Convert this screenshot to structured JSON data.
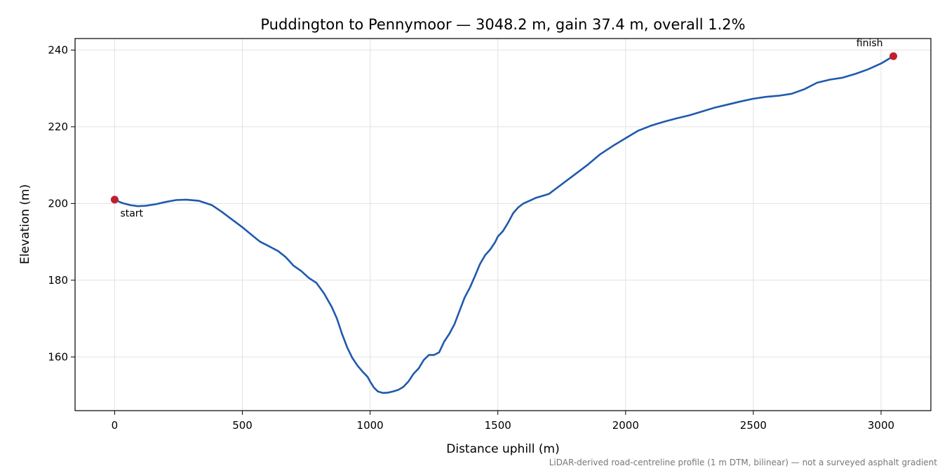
{
  "chart_data": {
    "type": "line",
    "title": "Puddington to Pennymoor — 3048.2 m, gain 37.4 m, overall 1.2%",
    "xlabel": "Distance uphill (m)",
    "ylabel": "Elevation (m)",
    "xlim": [
      -155,
      3195
    ],
    "ylim": [
      146,
      243
    ],
    "xticks": [
      0,
      500,
      1000,
      1500,
      2000,
      2500,
      3000
    ],
    "yticks": [
      160,
      180,
      200,
      220,
      240
    ],
    "grid": true,
    "series": [
      {
        "color": "#1f5aad",
        "x": [
          0,
          30,
          60,
          90,
          120,
          160,
          200,
          240,
          280,
          330,
          380,
          420,
          460,
          500,
          540,
          570,
          600,
          640,
          670,
          700,
          730,
          760,
          790,
          820,
          850,
          870,
          890,
          910,
          930,
          950,
          970,
          990,
          1000,
          1015,
          1030,
          1050,
          1070,
          1090,
          1110,
          1130,
          1150,
          1170,
          1190,
          1210,
          1230,
          1250,
          1270,
          1290,
          1310,
          1330,
          1350,
          1370,
          1390,
          1410,
          1430,
          1450,
          1470,
          1490,
          1500,
          1520,
          1540,
          1560,
          1580,
          1600,
          1650,
          1700,
          1750,
          1800,
          1850,
          1900,
          1950,
          2000,
          2050,
          2100,
          2150,
          2200,
          2250,
          2300,
          2350,
          2400,
          2450,
          2500,
          2550,
          2600,
          2650,
          2700,
          2750,
          2800,
          2850,
          2900,
          2950,
          3000,
          3048.2
        ],
        "y": [
          201.0,
          200.1,
          199.6,
          199.3,
          199.4,
          199.8,
          200.4,
          200.9,
          201.0,
          200.7,
          199.6,
          197.8,
          195.8,
          193.8,
          191.6,
          190.0,
          189.0,
          187.6,
          186.0,
          183.8,
          182.4,
          180.6,
          179.3,
          176.5,
          173.0,
          170.0,
          166.0,
          162.5,
          159.8,
          157.8,
          156.2,
          154.8,
          153.6,
          152.0,
          151.0,
          150.6,
          150.7,
          151.0,
          151.4,
          152.2,
          153.6,
          155.6,
          157.0,
          159.2,
          160.5,
          160.5,
          161.2,
          164.0,
          166.0,
          168.5,
          172.0,
          175.5,
          178.0,
          181.0,
          184.2,
          186.5,
          188.0,
          190.0,
          191.4,
          192.8,
          195.0,
          197.5,
          199.0,
          200.0,
          201.5,
          202.5,
          205.0,
          207.5,
          210.0,
          212.8,
          215.0,
          217.0,
          219.0,
          220.3,
          221.3,
          222.2,
          223.0,
          224.0,
          225.0,
          225.8,
          226.6,
          227.3,
          227.8,
          228.1,
          228.6,
          229.8,
          231.5,
          232.3,
          232.8,
          233.8,
          235.0,
          236.5,
          238.4
        ]
      }
    ],
    "markers": [
      {
        "label": "start",
        "x": 0,
        "y": 201.0,
        "color": "#c0202e"
      },
      {
        "label": "finish",
        "x": 3048.2,
        "y": 238.4,
        "color": "#c0202e"
      }
    ],
    "footnote": "LiDAR-derived road-centreline profile (1 m DTM, bilinear) — not a surveyed asphalt gradient"
  }
}
